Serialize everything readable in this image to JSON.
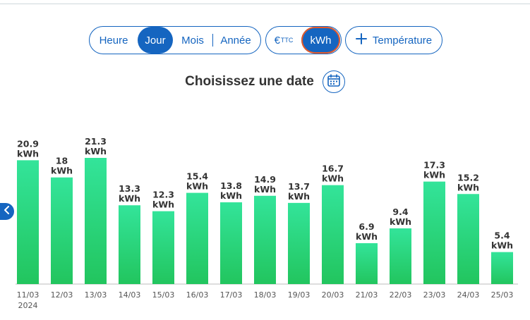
{
  "period_selector": {
    "options": [
      "Heure",
      "Jour",
      "Mois",
      "Année"
    ],
    "selected": "Jour"
  },
  "unit_selector": {
    "euro_label": "€",
    "euro_sup": "TTC",
    "kwh_label": "kWh",
    "selected": "kWh"
  },
  "temperature_button": {
    "label": "Température"
  },
  "date_picker": {
    "title": "Choisissez une date"
  },
  "colors": {
    "brand_blue": "#1565c0",
    "bar_top": "#33e49a",
    "bar_bottom": "#22c55e",
    "active_outline": "#e65a2a"
  },
  "chart_data": {
    "type": "bar",
    "unit": "kWh",
    "categories": [
      "11/03",
      "12/03",
      "13/03",
      "14/03",
      "15/03",
      "16/03",
      "17/03",
      "18/03",
      "19/03",
      "20/03",
      "21/03",
      "22/03",
      "23/03",
      "24/03",
      "25/03"
    ],
    "first_category_year": "2024",
    "values": [
      20.9,
      18,
      21.3,
      13.3,
      12.3,
      15.4,
      13.8,
      14.9,
      13.7,
      16.7,
      6.9,
      9.4,
      17.3,
      15.2,
      5.4
    ],
    "ylim": [
      0,
      21.3
    ],
    "grid": false,
    "legend": "none"
  }
}
